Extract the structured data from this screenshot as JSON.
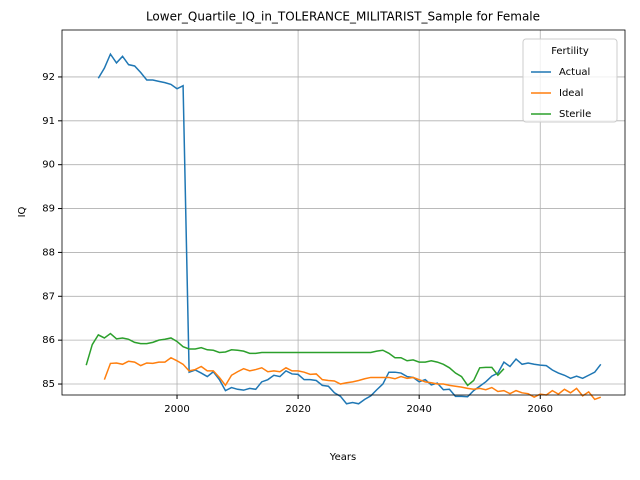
{
  "chart_data": {
    "type": "line",
    "title": "Lower_Quartile_IQ_in_TOLERANCE_MILITARIST_Sample for Female",
    "x_label": "Years",
    "y_label": "IQ",
    "legend_title": "Fertility",
    "legend": "upper right",
    "grid": true,
    "xlim": [
      1981,
      2074
    ],
    "xticks": [
      2000,
      2020,
      2040,
      2060
    ],
    "ylim": [
      84.75,
      93.07
    ],
    "yticks": [
      85,
      86,
      87,
      88,
      89,
      90,
      91,
      92
    ],
    "x": [
      1985,
      1986,
      1987,
      1988,
      1989,
      1990,
      1991,
      1992,
      1993,
      1994,
      1995,
      1996,
      1997,
      1998,
      1999,
      2000,
      2001,
      2002,
      2003,
      2004,
      2005,
      2006,
      2007,
      2008,
      2009,
      2010,
      2011,
      2012,
      2013,
      2014,
      2015,
      2016,
      2017,
      2018,
      2019,
      2020,
      2021,
      2022,
      2023,
      2024,
      2025,
      2026,
      2027,
      2028,
      2029,
      2030,
      2031,
      2032,
      2033,
      2034,
      2035,
      2036,
      2037,
      2038,
      2039,
      2040,
      2041,
      2042,
      2043,
      2044,
      2045,
      2046,
      2047,
      2048,
      2049,
      2050,
      2051,
      2052,
      2053,
      2054,
      2055,
      2056,
      2057,
      2058,
      2059,
      2060,
      2061,
      2062,
      2063,
      2064,
      2065,
      2066,
      2067,
      2068,
      2069,
      2070
    ],
    "series": [
      {
        "name": "Actual",
        "color": "#1f77b4",
        "values": [
          null,
          null,
          91.97,
          92.2,
          92.52,
          92.32,
          92.47,
          92.28,
          92.25,
          92.1,
          91.93,
          91.93,
          91.9,
          91.87,
          91.83,
          91.73,
          91.8,
          85.27,
          85.32,
          85.25,
          85.17,
          85.28,
          85.1,
          84.85,
          84.92,
          84.88,
          84.86,
          84.9,
          84.88,
          85.05,
          85.1,
          85.2,
          85.17,
          85.3,
          85.23,
          85.22,
          85.1,
          85.1,
          85.08,
          84.97,
          84.95,
          84.8,
          84.72,
          84.55,
          84.58,
          84.55,
          84.65,
          84.73,
          84.87,
          85.0,
          85.27,
          85.27,
          85.25,
          85.17,
          85.15,
          85.05,
          85.1,
          84.98,
          85.02,
          84.87,
          84.88,
          84.72,
          84.72,
          84.71,
          84.85,
          84.95,
          85.05,
          85.18,
          85.25,
          85.5,
          85.4,
          85.57,
          85.45,
          85.48,
          85.45,
          85.43,
          85.42,
          85.32,
          85.25,
          85.2,
          85.13,
          85.18,
          85.13,
          85.2,
          85.27,
          85.45
        ]
      },
      {
        "name": "Ideal",
        "color": "#ff7f0e",
        "values": [
          null,
          null,
          null,
          85.1,
          85.47,
          85.48,
          85.45,
          85.52,
          85.5,
          85.42,
          85.48,
          85.47,
          85.5,
          85.5,
          85.6,
          85.53,
          85.45,
          85.3,
          85.33,
          85.4,
          85.3,
          85.3,
          85.15,
          84.97,
          85.2,
          85.28,
          85.35,
          85.3,
          85.33,
          85.37,
          85.28,
          85.3,
          85.28,
          85.37,
          85.3,
          85.3,
          85.27,
          85.22,
          85.23,
          85.1,
          85.08,
          85.07,
          85.0,
          85.03,
          85.05,
          85.08,
          85.12,
          85.15,
          85.15,
          85.15,
          85.15,
          85.12,
          85.17,
          85.13,
          85.15,
          85.1,
          85.05,
          85.03,
          85.0,
          85.0,
          84.97,
          84.95,
          84.93,
          84.9,
          84.88,
          84.9,
          84.87,
          84.92,
          84.83,
          84.85,
          84.78,
          84.85,
          84.8,
          84.78,
          84.7,
          84.77,
          84.75,
          84.85,
          84.77,
          84.88,
          84.8,
          84.9,
          84.73,
          84.82,
          84.65,
          84.7
        ]
      },
      {
        "name": "Sterile",
        "color": "#2ca02c",
        "values": [
          85.43,
          85.9,
          86.12,
          86.05,
          86.15,
          86.03,
          86.05,
          86.02,
          85.95,
          85.92,
          85.92,
          85.95,
          86.0,
          86.02,
          86.05,
          85.97,
          85.85,
          85.8,
          85.8,
          85.83,
          85.78,
          85.77,
          85.72,
          85.73,
          85.78,
          85.77,
          85.75,
          85.7,
          85.7,
          85.72,
          85.72,
          85.72,
          85.72,
          85.72,
          85.72,
          85.72,
          85.72,
          85.72,
          85.72,
          85.72,
          85.72,
          85.72,
          85.72,
          85.72,
          85.72,
          85.72,
          85.72,
          85.72,
          85.75,
          85.77,
          85.7,
          85.6,
          85.6,
          85.53,
          85.55,
          85.5,
          85.5,
          85.53,
          85.5,
          85.45,
          85.37,
          85.25,
          85.17,
          84.97,
          85.08,
          85.37,
          85.38,
          85.38,
          85.2,
          85.35,
          null,
          null,
          null,
          null,
          null,
          null,
          null,
          null,
          null,
          null,
          null,
          null,
          null,
          null,
          null,
          null
        ]
      }
    ]
  }
}
